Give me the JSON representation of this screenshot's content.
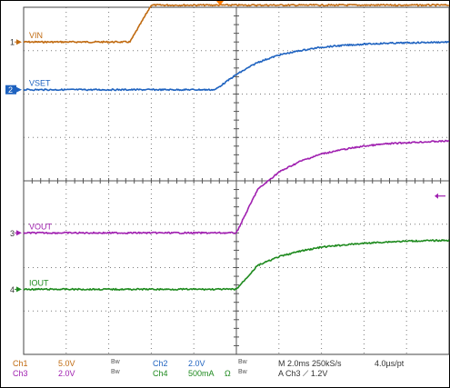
{
  "chart_data": {
    "type": "line",
    "title": "",
    "x_divisions": 10,
    "y_divisions": 8,
    "grid": true,
    "x": [
      0,
      0.5,
      1,
      1.5,
      2,
      2.5,
      3,
      3.5,
      4,
      4.5,
      5,
      5.5,
      6,
      6.5,
      7,
      7.5,
      8,
      8.5,
      9,
      9.5,
      10
    ],
    "series": [
      {
        "name": "VIN",
        "color": "#c06a10",
        "values": [
          7.2,
          7.2,
          7.2,
          7.2,
          7.2,
          7.2,
          8.05,
          8.05,
          8.05,
          8.05,
          8.05,
          8.05,
          8.05,
          8.05,
          8.05,
          8.05,
          8.05,
          8.05,
          8.05,
          8.05,
          8.05
        ]
      },
      {
        "name": "VSET",
        "color": "#1f63c0",
        "values": [
          6.1,
          6.1,
          6.1,
          6.1,
          6.1,
          6.1,
          6.1,
          6.1,
          6.1,
          6.1,
          6.45,
          6.73,
          6.9,
          7.0,
          7.08,
          7.12,
          7.15,
          7.17,
          7.18,
          7.19,
          7.2
        ]
      },
      {
        "name": "VOUT",
        "color": "#a020b0",
        "values": [
          2.8,
          2.8,
          2.8,
          2.8,
          2.8,
          2.8,
          2.8,
          2.8,
          2.8,
          2.8,
          2.8,
          3.8,
          4.2,
          4.45,
          4.62,
          4.72,
          4.8,
          4.85,
          4.88,
          4.9,
          4.92
        ]
      },
      {
        "name": "IOUT",
        "color": "#1e8a1e",
        "values": [
          1.5,
          1.5,
          1.5,
          1.5,
          1.5,
          1.5,
          1.5,
          1.5,
          1.5,
          1.5,
          1.5,
          2.05,
          2.25,
          2.38,
          2.47,
          2.52,
          2.56,
          2.59,
          2.61,
          2.62,
          2.63
        ]
      }
    ],
    "markers": [
      {
        "ch": "1",
        "level": 7.2,
        "color": "#c06a10"
      },
      {
        "ch": "2",
        "level": 6.1,
        "color": "#1f63c0"
      },
      {
        "ch": "3",
        "level": 2.8,
        "color": "#a020b0"
      },
      {
        "ch": "4",
        "level": 1.5,
        "color": "#1e8a1e"
      }
    ],
    "trigger_level": 3.65,
    "trigger_color": "#a020b0",
    "trigger_position_color": "#ff7a00"
  },
  "settings": {
    "ch1": {
      "label": "Ch1",
      "value": "5.0V",
      "bw": "Bw"
    },
    "ch3": {
      "label": "Ch3",
      "value": "2.0V",
      "bw": "Bw"
    },
    "ch2": {
      "label": "Ch2",
      "value": "2.0V",
      "bw": "Bw"
    },
    "ch4": {
      "label": "Ch4",
      "value": "500mA",
      "ohm": "Ω",
      "bw": "Bw"
    },
    "timebase": "M 2.0ms 250kS/s",
    "resolution": "4.0µs/pt",
    "trigger": "A  Ch3  ⟋  1.2V"
  }
}
